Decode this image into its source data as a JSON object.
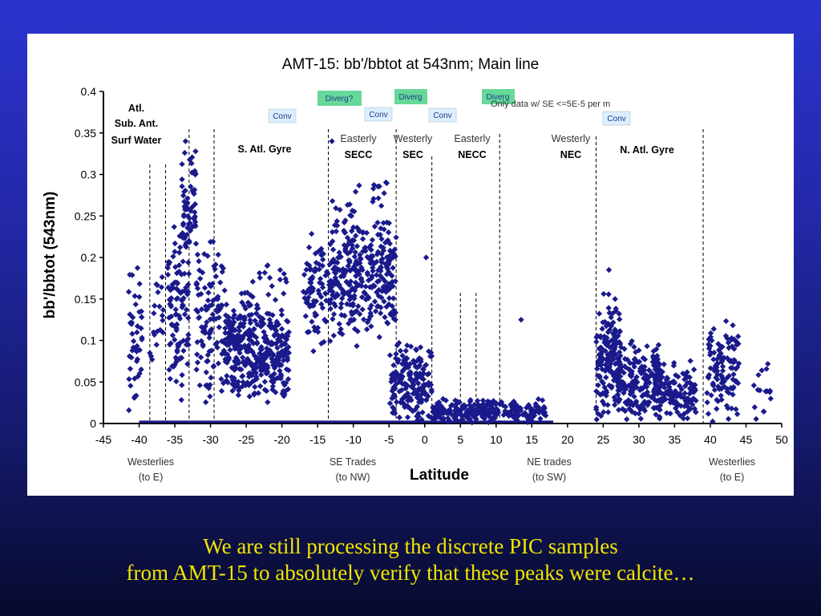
{
  "chart_data": {
    "type": "scatter",
    "title": "AMT-15: bb'/bbtot at 543nm; Main line",
    "xlabel": "Latitude",
    "ylabel": "bb'/bbtot (543nm)",
    "xlim": [
      -45,
      50
    ],
    "ylim": [
      0,
      0.4
    ],
    "xticks": [
      "-45",
      "-40",
      "-35",
      "-30",
      "-25",
      "-20",
      "-15",
      "-10",
      "-5",
      "0",
      "5",
      "10",
      "15",
      "20",
      "25",
      "30",
      "35",
      "40",
      "45",
      "50"
    ],
    "yticks": [
      "0",
      "0.05",
      "0.1",
      "0.15",
      "0.2",
      "0.25",
      "0.3",
      "0.35",
      "0.4"
    ],
    "grid": false,
    "legend": "none",
    "marker_color": "#1a1a8c",
    "note": "Only data w/ SE <=5E-5 per m",
    "clusters": [
      {
        "x": [
          -41.5,
          -39.5
        ],
        "y": [
          0.01,
          0.2
        ],
        "n": 45
      },
      {
        "x": [
          -38.5,
          -36.5
        ],
        "y": [
          0.05,
          0.2
        ],
        "n": 20
      },
      {
        "x": [
          -36,
          -33
        ],
        "y": [
          0.02,
          0.26
        ],
        "n": 110
      },
      {
        "x": [
          -34,
          -32
        ],
        "y": [
          0.18,
          0.34
        ],
        "n": 60
      },
      {
        "x": [
          -32,
          -28
        ],
        "y": [
          0.0,
          0.25
        ],
        "n": 110
      },
      {
        "x": [
          -28,
          -24
        ],
        "y": [
          0.03,
          0.15
        ],
        "n": 190
      },
      {
        "x": [
          -24,
          -19
        ],
        "y": [
          0.02,
          0.14
        ],
        "n": 190
      },
      {
        "x": [
          -26,
          -19
        ],
        "y": [
          0.09,
          0.22
        ],
        "n": 35
      },
      {
        "x": [
          -17,
          -13
        ],
        "y": [
          0.08,
          0.24
        ],
        "n": 100
      },
      {
        "x": [
          -13,
          -9
        ],
        "y": [
          0.08,
          0.28
        ],
        "n": 160
      },
      {
        "x": [
          -9,
          -4
        ],
        "y": [
          0.1,
          0.25
        ],
        "n": 160
      },
      {
        "x": [
          -11,
          -5
        ],
        "y": [
          0.26,
          0.3
        ],
        "n": 14
      },
      {
        "x": [
          -5,
          1
        ],
        "y": [
          0.0,
          0.1
        ],
        "n": 190
      },
      {
        "x": [
          1,
          10
        ],
        "y": [
          0.0,
          0.03
        ],
        "n": 190
      },
      {
        "x": [
          10,
          17
        ],
        "y": [
          0.0,
          0.03
        ],
        "n": 90
      },
      {
        "x": [
          24,
          27.5
        ],
        "y": [
          0.0,
          0.16
        ],
        "n": 170
      },
      {
        "x": [
          27,
          33
        ],
        "y": [
          0.0,
          0.1
        ],
        "n": 190
      },
      {
        "x": [
          32,
          38
        ],
        "y": [
          0.0,
          0.08
        ],
        "n": 150
      },
      {
        "x": [
          39.5,
          44
        ],
        "y": [
          0.0,
          0.13
        ],
        "n": 120
      },
      {
        "x": [
          46,
          48.5
        ],
        "y": [
          0.0,
          0.08
        ],
        "n": 16
      }
    ],
    "points": [
      {
        "x": 0.2,
        "y": 0.2
      },
      {
        "x": 13.5,
        "y": 0.125
      },
      {
        "x": 25.8,
        "y": 0.185
      },
      {
        "x": -13,
        "y": 0.34
      },
      {
        "x": -33.5,
        "y": 0.34
      }
    ],
    "floor_line": {
      "x": [
        -40,
        18
      ],
      "y": 0.002
    },
    "boundaries": [
      -38.5,
      -36.3,
      -33,
      -29.5,
      -13.5,
      -4,
      1,
      5,
      7.2,
      10.5,
      24,
      39
    ]
  },
  "region_labels": {
    "atl": [
      "Atl.",
      "Sub. Ant.",
      "Surf Water"
    ],
    "s_gyre": "S. Atl. Gyre",
    "secc": [
      "Easterly",
      "SECC"
    ],
    "sec": [
      "Westerly",
      "SEC"
    ],
    "necc": [
      "Easterly",
      "NECC"
    ],
    "nec": [
      "Westerly",
      "NEC"
    ],
    "n_gyre": "N. Atl. Gyre"
  },
  "tags": {
    "conv1": "Conv",
    "diverg1": "Diverg?",
    "conv2": "Conv",
    "diverg2": "Diverg",
    "conv3": "Conv",
    "diverg3": "Diverg",
    "conv4": "Conv"
  },
  "tag_colors": {
    "conv": "#ddeeff",
    "diverg": "#66d999"
  },
  "winds": {
    "w1": [
      "Westerlies",
      "(to E)"
    ],
    "w2": [
      "SE Trades",
      "(to NW)"
    ],
    "w3": [
      "NE trades",
      "(to SW)"
    ],
    "w4": [
      "Westerlies",
      "(to E)"
    ]
  },
  "caption": {
    "line1": "We are still processing the discrete PIC samples",
    "line2": "from AMT-15 to absolutely verify that these peaks were calcite…"
  }
}
